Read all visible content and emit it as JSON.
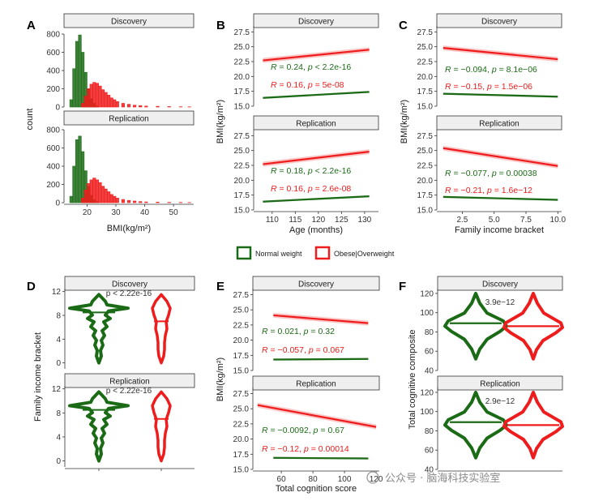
{
  "colors": {
    "normal": "#1b6b16",
    "obese": "#ee1c1c"
  },
  "legend": {
    "normal": "Normal weight",
    "obese": "Obese|Overweight"
  },
  "strips": {
    "discovery": "Discovery",
    "replication": "Replication"
  },
  "watermark": "公众号 · 脑海科技实验室",
  "chart_data": [
    {
      "panel": "A",
      "type": "bar",
      "xlabel": "BMI(kg/m²)",
      "ylabel": "count",
      "xlim": [
        12,
        57
      ],
      "ylim": [
        0,
        800
      ],
      "xticks": [
        "20",
        "30",
        "40",
        "50"
      ],
      "yticks": [
        "0",
        "200",
        "400",
        "600",
        "800"
      ],
      "bin_width": 1,
      "facets": [
        {
          "strip": "Discovery",
          "series": [
            {
              "name": "Normal weight",
              "x": [
                14,
                15,
                16,
                17,
                18,
                19,
                20,
                21,
                22,
                23
              ],
              "values": [
                80,
                420,
                720,
                790,
                600,
                380,
                200,
                90,
                40,
                10
              ]
            },
            {
              "name": "Obese|Overweight",
              "x": [
                18,
                19,
                20,
                21,
                22,
                23,
                24,
                25,
                26,
                27,
                28,
                29,
                30,
                32,
                34,
                36,
                38,
                40,
                44,
                48,
                52,
                55
              ],
              "values": [
                40,
                120,
                200,
                250,
                270,
                260,
                230,
                190,
                160,
                130,
                100,
                80,
                60,
                40,
                30,
                20,
                15,
                10,
                8,
                5,
                3,
                2
              ]
            }
          ]
        },
        {
          "strip": "Replication",
          "series": [
            {
              "name": "Normal weight",
              "x": [
                14,
                15,
                16,
                17,
                18,
                19,
                20,
                21,
                22,
                23
              ],
              "values": [
                70,
                400,
                690,
                730,
                560,
                350,
                180,
                80,
                30,
                10
              ]
            },
            {
              "name": "Obese|Overweight",
              "x": [
                18,
                19,
                20,
                21,
                22,
                23,
                24,
                25,
                26,
                27,
                28,
                29,
                30,
                32,
                34,
                36,
                38,
                40,
                44,
                48,
                52,
                55
              ],
              "values": [
                50,
                140,
                210,
                250,
                270,
                250,
                220,
                180,
                150,
                120,
                90,
                70,
                50,
                35,
                25,
                18,
                12,
                8,
                6,
                4,
                3,
                2
              ]
            }
          ]
        }
      ]
    },
    {
      "panel": "B",
      "type": "line",
      "xlabel": "Age (months)",
      "ylabel": "BMI(kg/m²)",
      "xlim": [
        106,
        133
      ],
      "ylim": [
        15,
        28.5
      ],
      "xticks": [
        110,
        115,
        120,
        125,
        130
      ],
      "yticks": [
        "15.0",
        "17.5",
        "20.0",
        "22.5",
        "25.0",
        "27.5"
      ],
      "facets": [
        {
          "strip": "Discovery",
          "series": [
            {
              "name": "Normal weight",
              "x": [
                108,
                131
              ],
              "y": [
                16.4,
                17.4
              ],
              "stat": "R = 0.24, p < 2.2e-16"
            },
            {
              "name": "Obese|Overweight",
              "x": [
                108,
                131
              ],
              "y": [
                22.7,
                24.5
              ],
              "stat": "R = 0.16, p = 5e-08"
            }
          ]
        },
        {
          "strip": "Replication",
          "series": [
            {
              "name": "Normal weight",
              "x": [
                108,
                131
              ],
              "y": [
                16.4,
                17.3
              ],
              "stat": "R = 0.18, p < 2.2e-16"
            },
            {
              "name": "Obese|Overweight",
              "x": [
                108,
                131
              ],
              "y": [
                22.7,
                24.8
              ],
              "stat": "R = 0.16, p = 2.6e-08"
            }
          ]
        }
      ]
    },
    {
      "panel": "C",
      "type": "line",
      "xlabel": "Family income bracket",
      "ylabel": "BMI(kg/m²)",
      "xlim": [
        0.5,
        10.3
      ],
      "ylim": [
        15,
        28.5
      ],
      "xticks": [
        "2.5",
        "5.0",
        "7.5",
        "10.0"
      ],
      "yticks": [
        "15.0",
        "17.5",
        "20.0",
        "22.5",
        "25.0",
        "27.5"
      ],
      "facets": [
        {
          "strip": "Discovery",
          "series": [
            {
              "name": "Normal weight",
              "x": [
                1,
                10
              ],
              "y": [
                17.1,
                16.6
              ],
              "stat": "R = −0.094, p = 8.1e−06"
            },
            {
              "name": "Obese|Overweight",
              "x": [
                1,
                10
              ],
              "y": [
                24.8,
                22.9
              ],
              "stat": "R = −0.15, p = 1.5e−06"
            }
          ]
        },
        {
          "strip": "Replication",
          "series": [
            {
              "name": "Normal weight",
              "x": [
                1,
                10
              ],
              "y": [
                17.2,
                16.7
              ],
              "stat": "R = −0.077, p = 0.00038"
            },
            {
              "name": "Obese|Overweight",
              "x": [
                1,
                10
              ],
              "y": [
                25.4,
                22.4
              ],
              "stat": "R = −0.21, p = 1.6e−12"
            }
          ]
        }
      ]
    },
    {
      "panel": "D",
      "type": "violin",
      "ylabel": "Family income bracket",
      "ylim": [
        -1,
        12.5
      ],
      "yticks": [
        "0",
        "4",
        "8",
        "12"
      ],
      "facets": [
        {
          "strip": "Discovery",
          "annotation": "p < 2.22e-16",
          "series": [
            {
              "name": "Normal weight",
              "median": 8.5
            },
            {
              "name": "Obese|Overweight",
              "median": 7
            }
          ]
        },
        {
          "strip": "Replication",
          "annotation": "p < 2.22e-16",
          "series": [
            {
              "name": "Normal weight",
              "median": 8.5
            },
            {
              "name": "Obese|Overweight",
              "median": 7
            }
          ]
        }
      ]
    },
    {
      "panel": "E",
      "type": "line",
      "xlabel": "Total cognition score",
      "ylabel": "BMI(kg/m²)",
      "xlim": [
        42,
        122
      ],
      "ylim": [
        15,
        28.5
      ],
      "xticks": [
        "60",
        "80",
        "100",
        "120"
      ],
      "yticks": [
        "15.0",
        "17.5",
        "20.0",
        "22.5",
        "25.0",
        "27.5"
      ],
      "facets": [
        {
          "strip": "Discovery",
          "series": [
            {
              "name": "Normal weight",
              "x": [
                55,
                115
              ],
              "y": [
                16.8,
                16.9
              ],
              "stat": "R = 0.021, p = 0.32"
            },
            {
              "name": "Obese|Overweight",
              "x": [
                55,
                115
              ],
              "y": [
                24.1,
                22.8
              ],
              "stat": "R = −0.057, p = 0.067"
            }
          ]
        },
        {
          "strip": "Replication",
          "series": [
            {
              "name": "Normal weight",
              "x": [
                55,
                115
              ],
              "y": [
                16.9,
                16.8
              ],
              "stat": "R = −0.0092, p = 0.67"
            },
            {
              "name": "Obese|Overweight",
              "x": [
                45,
                120
              ],
              "y": [
                25.6,
                22.0
              ],
              "stat": "R = −0.12, p = 0.00014"
            }
          ]
        }
      ]
    },
    {
      "panel": "F",
      "type": "violin",
      "ylabel": "Total cognitive composite",
      "ylim": [
        40,
        125
      ],
      "yticks": [
        "40",
        "60",
        "80",
        "100",
        "120"
      ],
      "facets": [
        {
          "strip": "Discovery",
          "annotation": "3.9e−12",
          "series": [
            {
              "name": "Normal weight",
              "median": 89
            },
            {
              "name": "Obese|Overweight",
              "median": 86
            }
          ]
        },
        {
          "strip": "Replication",
          "annotation": "2.9e−12",
          "series": [
            {
              "name": "Normal weight",
              "median": 89
            },
            {
              "name": "Obese|Overweight",
              "median": 86
            }
          ]
        }
      ]
    }
  ]
}
